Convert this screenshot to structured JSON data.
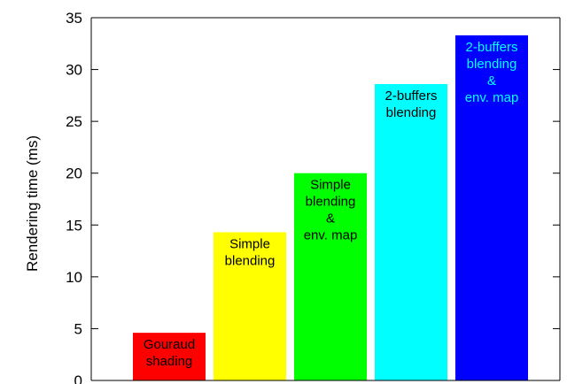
{
  "chart_data": {
    "type": "bar",
    "title": "",
    "xlabel": "",
    "ylabel": "Rendering time (ms)",
    "ylim": [
      0,
      35
    ],
    "yticks": [
      0,
      5,
      10,
      15,
      20,
      25,
      30,
      35
    ],
    "grid": false,
    "legend": "none",
    "bars": [
      {
        "label_lines": [
          "Gouraud",
          "shading"
        ],
        "value": 4.6,
        "color": "#ff0000",
        "label_color": "#000000"
      },
      {
        "label_lines": [
          "Simple",
          "blending"
        ],
        "value": 14.3,
        "color": "#ffff00",
        "label_color": "#000000"
      },
      {
        "label_lines": [
          "Simple",
          "blending",
          "&",
          "env. map"
        ],
        "value": 20.0,
        "color": "#00ff00",
        "label_color": "#000000"
      },
      {
        "label_lines": [
          "2-buffers",
          "blending"
        ],
        "value": 28.6,
        "color": "#00ffff",
        "label_color": "#000000"
      },
      {
        "label_lines": [
          "2-buffers",
          "blending",
          "&",
          "env. map"
        ],
        "value": 33.3,
        "color": "#0000ff",
        "label_color": "#00ffff"
      }
    ]
  }
}
